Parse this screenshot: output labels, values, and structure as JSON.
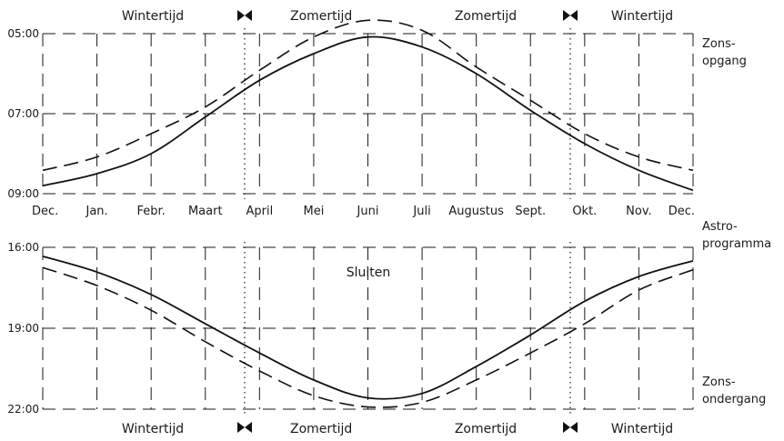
{
  "chart_data": [
    {
      "type": "line",
      "panel": "top",
      "x": [
        "Dec.",
        "Jan.",
        "Febr.",
        "Maart",
        "April",
        "Mei",
        "Juni",
        "Juli",
        "Augustus",
        "Sept.",
        "Okt.",
        "Nov.",
        "Dec."
      ],
      "y_ticks": [
        "05:00",
        "07:00",
        "09:00"
      ],
      "ylim": [
        "05:00",
        "09:00"
      ],
      "y_inverted": true,
      "grid": true,
      "side_label": [
        "Zons-",
        "opgang"
      ],
      "season_labels": [
        "Wintertijd",
        "Zomertijd",
        "Zomertijd",
        "Wintertijd"
      ],
      "series": [
        {
          "style": "solid",
          "values": [
            "08:48",
            "08:30",
            "08:00",
            "07:05",
            "06:10",
            "05:30",
            "05:05",
            "05:20",
            "06:00",
            "06:55",
            "07:45",
            "08:25",
            "08:55"
          ]
        },
        {
          "style": "dashed",
          "values": [
            "08:25",
            "08:05",
            "07:30",
            "06:50",
            "05:55",
            "05:05",
            "04:40",
            "04:55",
            "05:50",
            "06:40",
            "07:30",
            "08:05",
            "08:25"
          ]
        }
      ]
    },
    {
      "type": "line",
      "panel": "bottom",
      "x": [
        "Dec.",
        "Jan.",
        "Febr.",
        "Maart",
        "April",
        "Mei",
        "Juni",
        "Juli",
        "Augustus",
        "Sept.",
        "Okt.",
        "Nov.",
        "Dec."
      ],
      "y_ticks": [
        "16:00",
        "19:00",
        "22:00"
      ],
      "ylim": [
        "16:00",
        "22:00"
      ],
      "y_inverted": true,
      "grid": true,
      "title": "Sluiten",
      "side_label": [
        "Zons-",
        "ondergang"
      ],
      "season_labels": [
        "Wintertijd",
        "Zomertijd",
        "Zomertijd",
        "Wintertijd"
      ],
      "series": [
        {
          "style": "solid",
          "values": [
            "16:20",
            "16:55",
            "17:45",
            "18:50",
            "19:55",
            "20:55",
            "21:35",
            "21:25",
            "20:25",
            "19:15",
            "18:00",
            "17:05",
            "16:30"
          ]
        },
        {
          "style": "dashed",
          "values": [
            "16:45",
            "17:25",
            "18:20",
            "19:30",
            "20:35",
            "21:30",
            "21:55",
            "21:45",
            "20:55",
            "19:55",
            "18:50",
            "17:35",
            "16:50"
          ]
        }
      ]
    }
  ],
  "middle_label": [
    "Astro-",
    "programma"
  ]
}
